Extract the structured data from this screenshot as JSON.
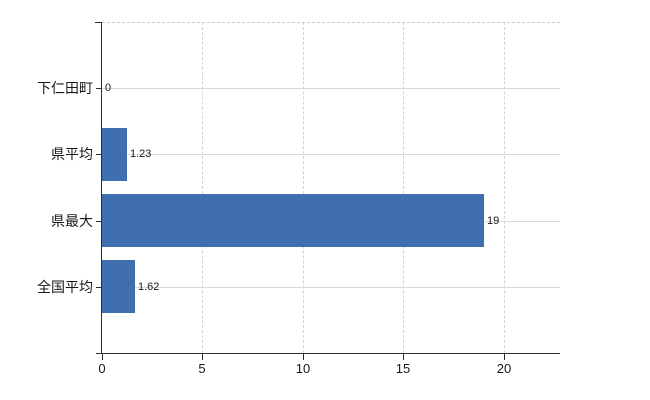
{
  "page": {
    "background_color": "#ffffff"
  },
  "chart_data": {
    "type": "bar",
    "orientation": "horizontal",
    "title": "",
    "xlabel": "",
    "ylabel": "",
    "categories": [
      "下仁田町",
      "県平均",
      "県最大",
      "全国平均"
    ],
    "values": [
      0,
      1.23,
      19,
      1.62
    ],
    "value_labels": [
      "0",
      "1.23",
      "19",
      "1.62"
    ],
    "x_ticks": [
      0,
      5,
      10,
      15,
      20
    ],
    "x_tick_labels": [
      "0",
      "5",
      "10",
      "15",
      "20"
    ],
    "xlim": [
      0,
      22.8
    ],
    "grid": true,
    "grid_vertical_style": "dashed",
    "grid_horizontal_style": "solid",
    "legend": false,
    "colors": {
      "bar": "#3f6fae",
      "grid": "#d9d9d9",
      "axis": "#2e2e2e",
      "text": "#191919",
      "background": "#ffffff"
    }
  }
}
